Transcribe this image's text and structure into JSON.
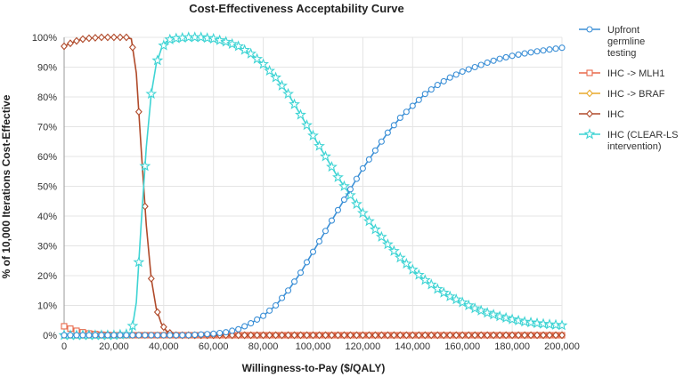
{
  "chart_data": {
    "type": "line",
    "title": "Cost-Effectiveness Acceptability Curve",
    "xlabel": "Willingness-to-Pay ($/QALY)",
    "ylabel": "% of 10,000 Iterations Cost-Effective",
    "xlim": [
      0,
      200000
    ],
    "ylim": [
      0,
      100
    ],
    "x_ticks": [
      0,
      20000,
      40000,
      60000,
      80000,
      100000,
      120000,
      140000,
      160000,
      180000,
      200000
    ],
    "x_tick_labels": [
      "0",
      "20,000",
      "40,000",
      "60,000",
      "80,000",
      "100,000",
      "120,000",
      "140,000",
      "160,000",
      "180,000",
      "200,000"
    ],
    "y_ticks": [
      0,
      10,
      20,
      30,
      40,
      50,
      60,
      70,
      80,
      90,
      100
    ],
    "y_tick_labels": [
      "0%",
      "10%",
      "20%",
      "30%",
      "40%",
      "50%",
      "60%",
      "70%",
      "80%",
      "90%",
      "100%"
    ],
    "grid": true,
    "legend_position": "right",
    "series": [
      {
        "name": "Upfront germline testing",
        "legend_lines": [
          "Upfront",
          "germline",
          "testing"
        ],
        "color": "#3b8fd6",
        "marker": "circle",
        "points": [
          [
            0,
            0
          ],
          [
            20000,
            0
          ],
          [
            40000,
            0
          ],
          [
            50000,
            0
          ],
          [
            60000,
            0.5
          ],
          [
            65000,
            1
          ],
          [
            70000,
            2
          ],
          [
            75000,
            4
          ],
          [
            80000,
            6.5
          ],
          [
            85000,
            10
          ],
          [
            90000,
            15
          ],
          [
            95000,
            21
          ],
          [
            100000,
            28
          ],
          [
            105000,
            35
          ],
          [
            110000,
            42
          ],
          [
            115000,
            49
          ],
          [
            120000,
            56
          ],
          [
            125000,
            62
          ],
          [
            130000,
            68
          ],
          [
            135000,
            73
          ],
          [
            140000,
            77
          ],
          [
            145000,
            81
          ],
          [
            150000,
            84
          ],
          [
            155000,
            86.5
          ],
          [
            160000,
            88.5
          ],
          [
            165000,
            90
          ],
          [
            170000,
            91.5
          ],
          [
            175000,
            92.8
          ],
          [
            180000,
            93.8
          ],
          [
            185000,
            94.6
          ],
          [
            190000,
            95.3
          ],
          [
            195000,
            95.9
          ],
          [
            200000,
            96.5
          ]
        ]
      },
      {
        "name": "IHC -> MLH1",
        "legend_lines": [
          "IHC -> MLH1"
        ],
        "color": "#e8694a",
        "marker": "square",
        "points": [
          [
            0,
            3
          ],
          [
            2500,
            2.2
          ],
          [
            5000,
            1.5
          ],
          [
            7500,
            1
          ],
          [
            10000,
            0.6
          ],
          [
            15000,
            0.2
          ],
          [
            20000,
            0
          ],
          [
            200000,
            0
          ]
        ]
      },
      {
        "name": "IHC -> BRAF",
        "legend_lines": [
          "IHC -> BRAF"
        ],
        "color": "#e8a92a",
        "marker": "diamond",
        "points": [
          [
            0,
            0
          ],
          [
            200000,
            0
          ]
        ]
      },
      {
        "name": "IHC",
        "legend_lines": [
          "IHC"
        ],
        "color": "#b04a2a",
        "marker": "diamond",
        "points": [
          [
            0,
            97
          ],
          [
            2500,
            98
          ],
          [
            5000,
            98.8
          ],
          [
            7500,
            99.4
          ],
          [
            10000,
            99.7
          ],
          [
            15000,
            100
          ],
          [
            20000,
            100
          ],
          [
            25000,
            100
          ],
          [
            27000,
            99.5
          ],
          [
            29000,
            88
          ],
          [
            31000,
            62
          ],
          [
            33000,
            37
          ],
          [
            35000,
            19
          ],
          [
            37000,
            9
          ],
          [
            39000,
            4
          ],
          [
            41000,
            1.5
          ],
          [
            43000,
            0.5
          ],
          [
            45000,
            0
          ],
          [
            200000,
            0
          ]
        ]
      },
      {
        "name": "IHC (CLEAR-LS intervention)",
        "legend_lines": [
          "IHC (CLEAR-LS",
          "intervention)"
        ],
        "color": "#3fd4d4",
        "marker": "star",
        "points": [
          [
            0,
            0
          ],
          [
            20000,
            0
          ],
          [
            27000,
            0.5
          ],
          [
            29000,
            11
          ],
          [
            31000,
            38
          ],
          [
            33000,
            63
          ],
          [
            35000,
            81
          ],
          [
            37000,
            91
          ],
          [
            39000,
            96
          ],
          [
            41000,
            98.5
          ],
          [
            43000,
            99.5
          ],
          [
            50000,
            100
          ],
          [
            55000,
            100
          ],
          [
            60000,
            99.5
          ],
          [
            65000,
            98.5
          ],
          [
            70000,
            97
          ],
          [
            75000,
            94.5
          ],
          [
            80000,
            91
          ],
          [
            85000,
            86.5
          ],
          [
            90000,
            81
          ],
          [
            95000,
            74
          ],
          [
            100000,
            67
          ],
          [
            105000,
            60
          ],
          [
            110000,
            53
          ],
          [
            115000,
            47
          ],
          [
            120000,
            41
          ],
          [
            125000,
            35.5
          ],
          [
            130000,
            30.5
          ],
          [
            135000,
            26
          ],
          [
            140000,
            22
          ],
          [
            145000,
            18.5
          ],
          [
            150000,
            15.5
          ],
          [
            155000,
            13
          ],
          [
            160000,
            11
          ],
          [
            165000,
            9
          ],
          [
            170000,
            7.5
          ],
          [
            175000,
            6.3
          ],
          [
            180000,
            5.3
          ],
          [
            185000,
            4.5
          ],
          [
            190000,
            4
          ],
          [
            195000,
            3.6
          ],
          [
            200000,
            3.3
          ]
        ]
      }
    ]
  }
}
